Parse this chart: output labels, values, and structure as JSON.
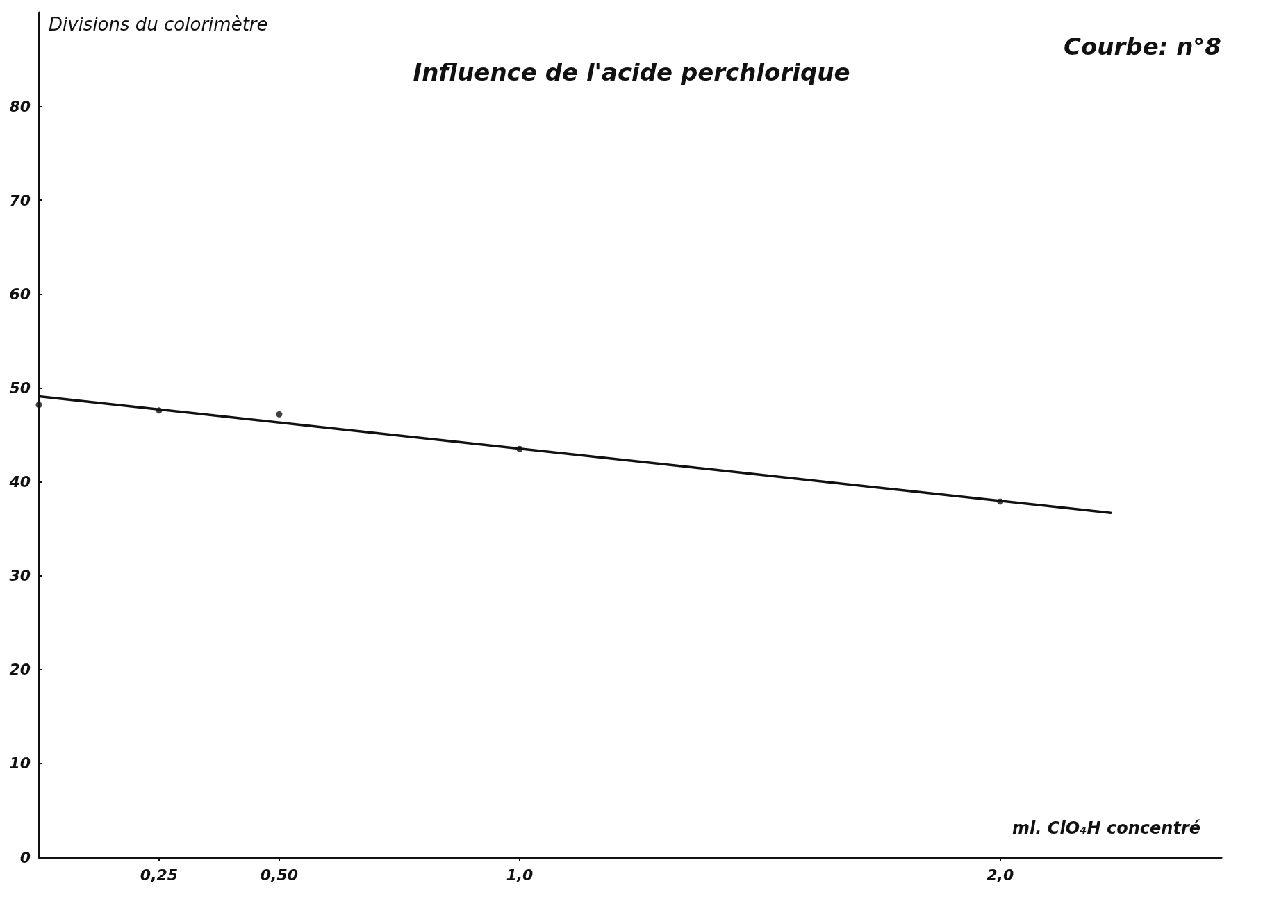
{
  "chart_data": {
    "type": "scatter",
    "title": "Influence de l'acide perchlorique",
    "xlabel": "ml. ClO₄H concentré",
    "ylabel": "Divisions du colorimètre",
    "annotations": [
      "Courbe: n°8"
    ],
    "xlim": [
      0,
      2.46
    ],
    "xticks": [
      {
        "value": 0.25,
        "label": "0,25"
      },
      {
        "value": 0.5,
        "label": "0,50"
      },
      {
        "value": 1,
        "label": "1,0"
      },
      {
        "value": 2,
        "label": "2,0"
      }
    ],
    "ylim": [
      0,
      90
    ],
    "yticks": [
      0,
      10,
      20,
      30,
      40,
      50,
      60,
      70,
      80
    ],
    "grid": false,
    "marker": "circle",
    "series": [
      {
        "color": "#111111",
        "x": [
          0,
          0.25,
          0.5,
          1,
          2
        ],
        "values": [
          48.2,
          47.6,
          47.2,
          43.5,
          37.9
        ]
      },
      {
        "type": "line",
        "color": "#111111",
        "x": [
          0,
          2.23
        ],
        "values": [
          49.1,
          36.7
        ],
        "line_style": "solid",
        "marker": "none"
      }
    ]
  }
}
